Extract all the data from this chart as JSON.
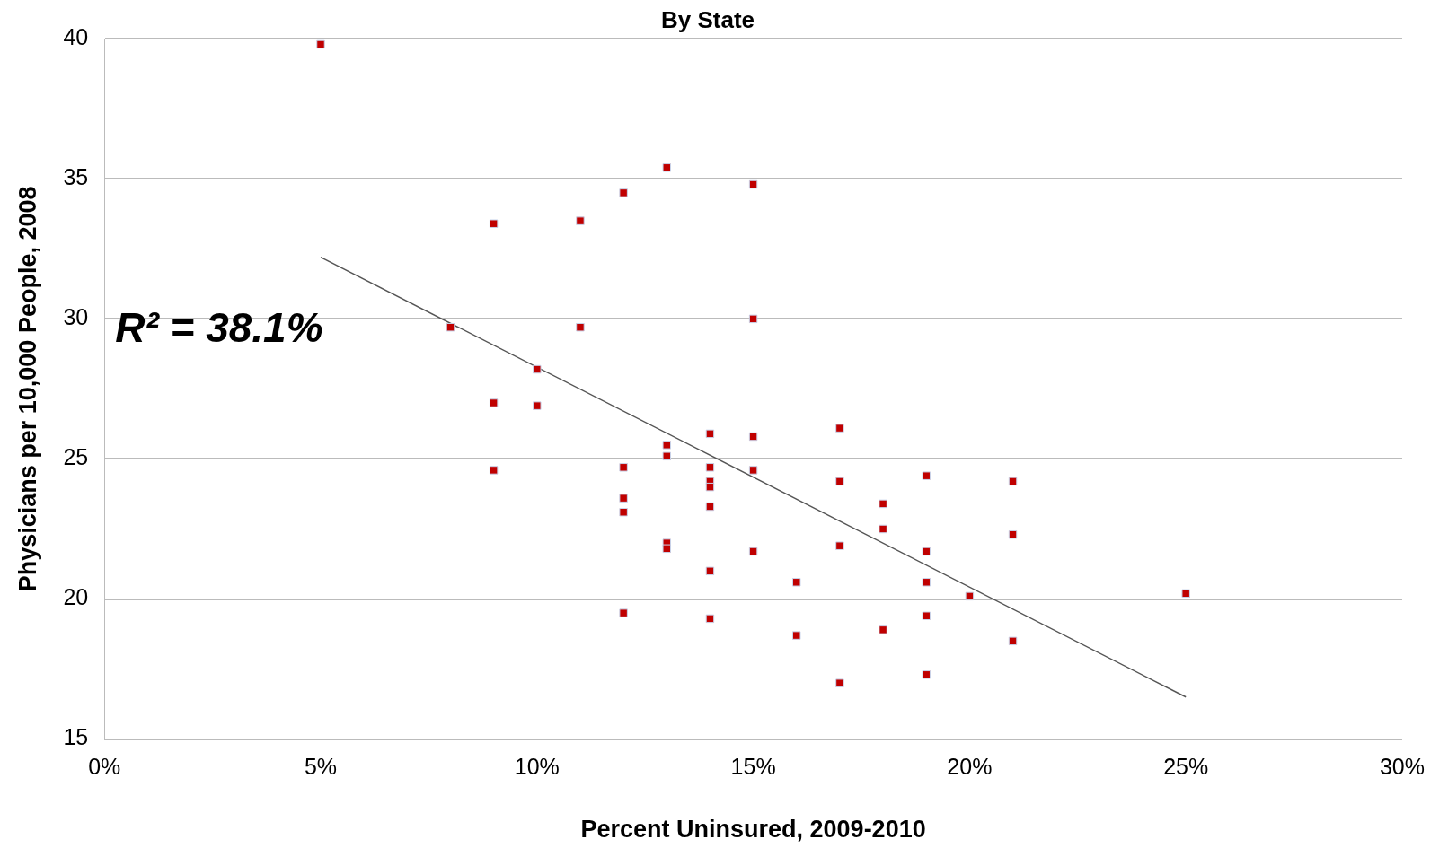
{
  "chart_data": {
    "type": "scatter",
    "title": "By State",
    "xlabel": "Percent Uninsured, 2009-2010",
    "ylabel": "Physicians per 10,000 People, 2008",
    "annotations": [
      "R² = 38.1%"
    ],
    "xlim": [
      0,
      30
    ],
    "xticks": [
      {
        "value": 0,
        "label": "0%"
      },
      {
        "value": 5,
        "label": "5%"
      },
      {
        "value": 10,
        "label": "10%"
      },
      {
        "value": 15,
        "label": "15%"
      },
      {
        "value": 20,
        "label": "20%"
      },
      {
        "value": 25,
        "label": "25%"
      },
      {
        "value": 30,
        "label": "30%"
      }
    ],
    "ylim": [
      15,
      40
    ],
    "yticks": [
      15,
      20,
      25,
      30,
      35,
      40
    ],
    "grid": "y",
    "legend": false,
    "series": [
      {
        "marker": "square",
        "color": "#c00000",
        "x": [
          5,
          8,
          9,
          9,
          9,
          10,
          10,
          11,
          11,
          12,
          12,
          12,
          12,
          12,
          13,
          13,
          13,
          13,
          13,
          14,
          14,
          14,
          14,
          14,
          14,
          14,
          15,
          15,
          15,
          15,
          15,
          16,
          16,
          17,
          17,
          17,
          17,
          18,
          18,
          18,
          19,
          19,
          19,
          19,
          19,
          20,
          21,
          21,
          21,
          25
        ],
        "values": [
          39.8,
          29.7,
          33.4,
          27.0,
          24.6,
          28.2,
          26.9,
          33.5,
          29.7,
          34.5,
          24.7,
          23.6,
          23.1,
          19.5,
          35.4,
          25.5,
          25.1,
          22.0,
          21.8,
          25.9,
          24.7,
          24.2,
          24.0,
          23.3,
          21.0,
          19.3,
          34.8,
          30.0,
          25.8,
          24.6,
          21.7,
          20.6,
          18.7,
          26.1,
          24.2,
          21.9,
          17.0,
          23.4,
          22.5,
          18.9,
          24.4,
          21.7,
          20.6,
          19.4,
          17.3,
          20.1,
          24.2,
          22.3,
          18.5,
          20.2
        ]
      },
      {
        "type": "line",
        "marker": "none",
        "color": "#555555",
        "x": [
          5,
          25
        ],
        "values": [
          32.2,
          16.5
        ]
      }
    ]
  }
}
